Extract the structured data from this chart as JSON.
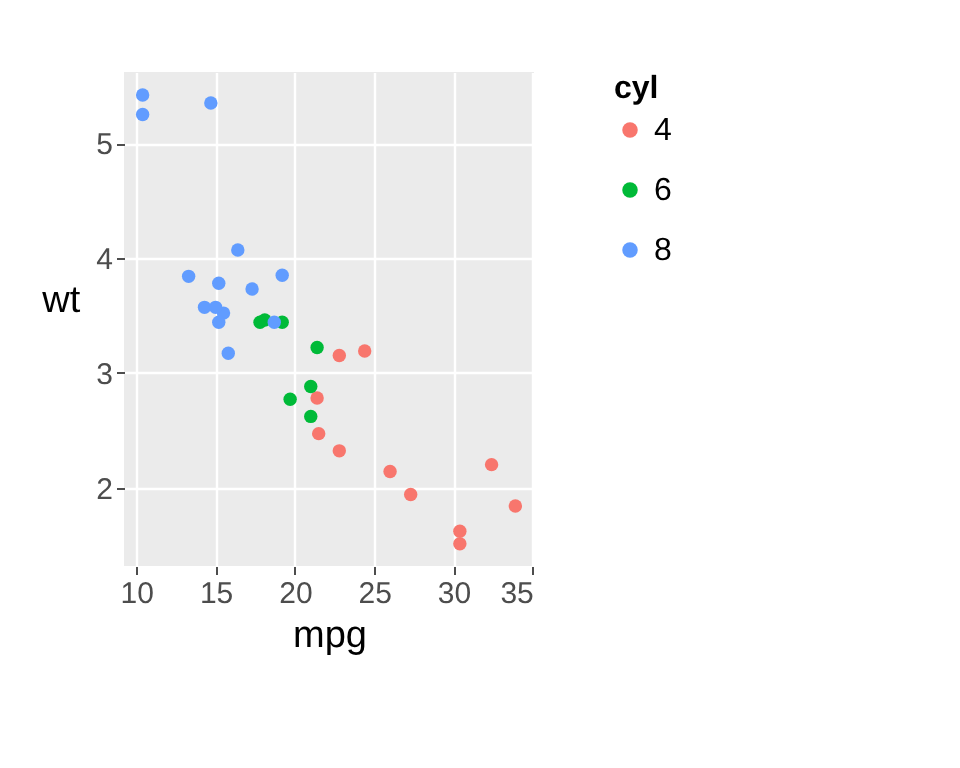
{
  "chart_data": {
    "type": "scatter",
    "xlabel": "mpg",
    "ylabel": "wt",
    "legend_title": "cyl",
    "legend": "right",
    "grid": true,
    "marker": "circle",
    "xlim": [
      9.225,
      35.075
    ],
    "xticks": [
      10,
      15,
      20,
      25,
      30,
      35
    ],
    "ylim": [
      1.317,
      5.62
    ],
    "yticks": [
      2,
      3,
      4,
      5
    ],
    "series": [
      {
        "name": "4",
        "color": "#f8766d",
        "x": [
          22.8,
          24.4,
          22.8,
          32.4,
          30.4,
          33.9,
          21.5,
          27.3,
          26,
          30.4,
          21.4
        ],
        "values": [
          2.32,
          3.19,
          3.15,
          2.2,
          1.62,
          1.84,
          2.47,
          1.94,
          2.14,
          1.51,
          2.78
        ]
      },
      {
        "name": "6",
        "color": "#00ba38",
        "x": [
          21,
          21,
          21.4,
          18.1,
          19.2,
          17.8,
          19.7
        ],
        "values": [
          2.62,
          2.88,
          3.22,
          3.46,
          3.44,
          3.44,
          2.77
        ]
      },
      {
        "name": "8",
        "color": "#619cff",
        "x": [
          18.7,
          14.3,
          16.4,
          17.3,
          15.2,
          10.4,
          10.4,
          14.7,
          15.5,
          15.2,
          13.3,
          19.2,
          15.8,
          15
        ],
        "values": [
          3.44,
          3.57,
          4.07,
          3.73,
          3.78,
          5.25,
          5.42,
          5.35,
          3.52,
          3.44,
          3.84,
          3.85,
          3.17,
          3.57
        ]
      }
    ]
  }
}
